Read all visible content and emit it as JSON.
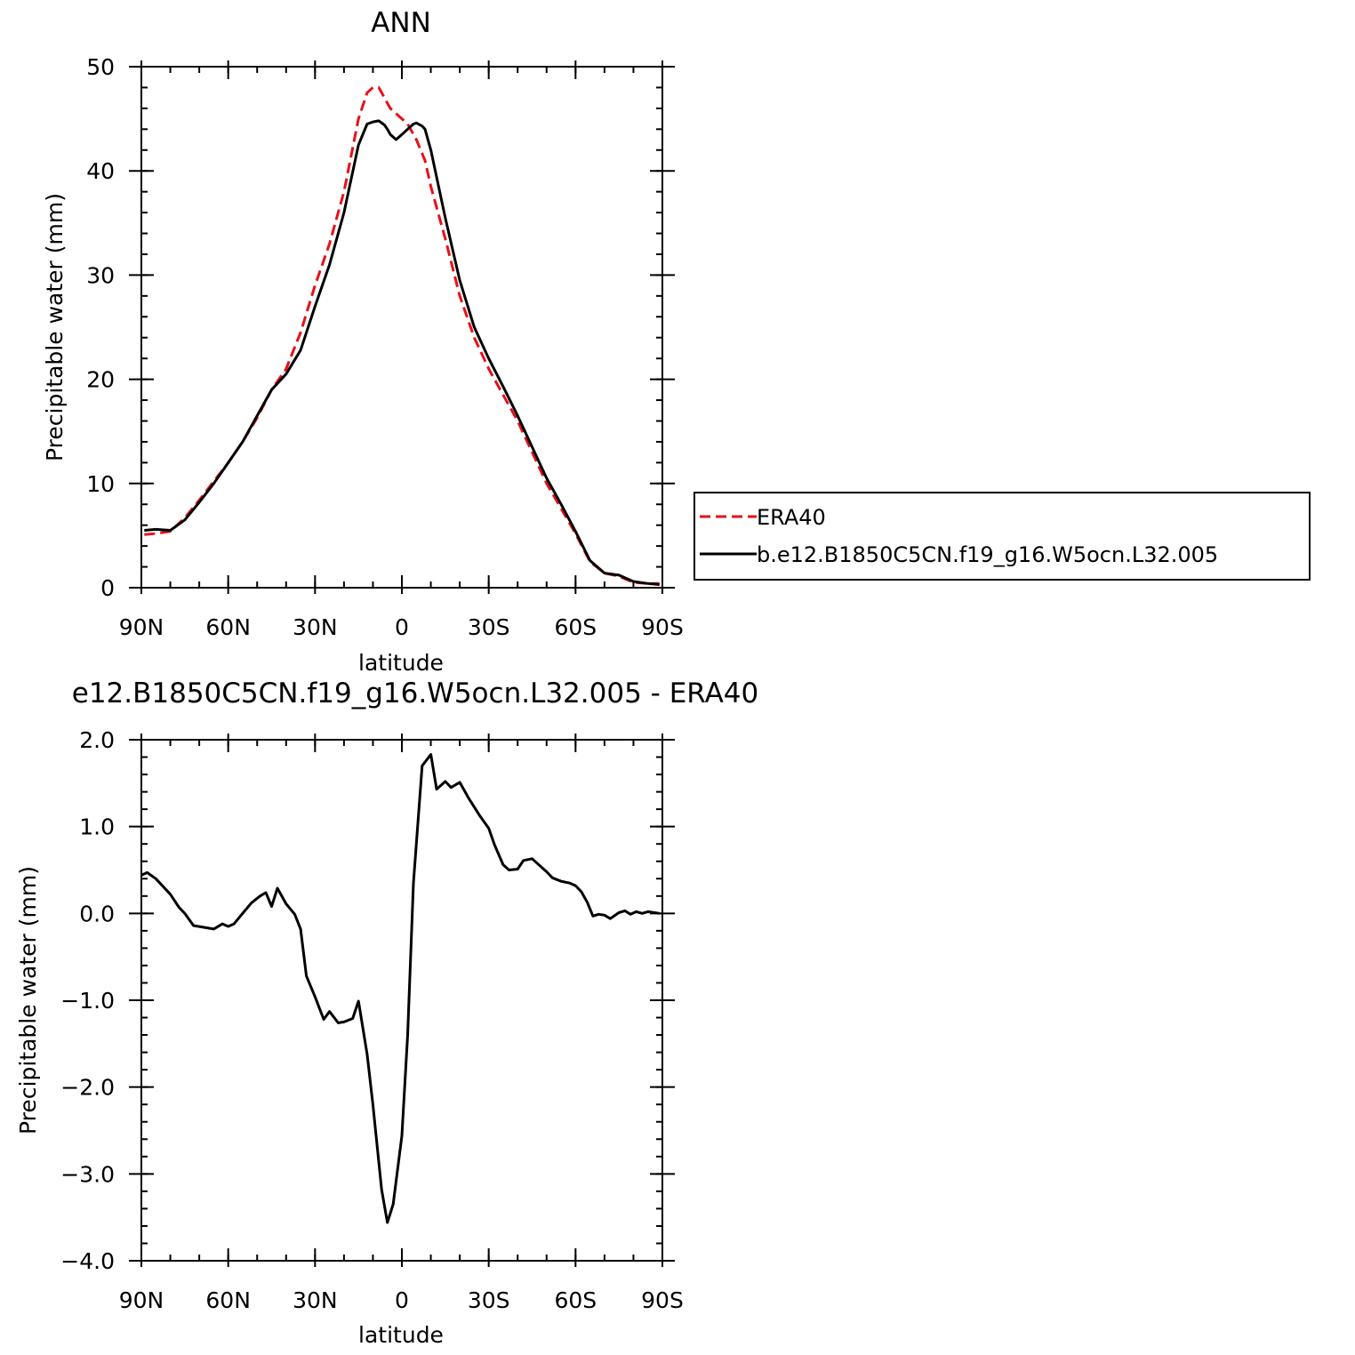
{
  "chart_data": [
    {
      "type": "line",
      "title": "ANN",
      "xlabel": "latitude",
      "ylabel": "Precipitable water (mm)",
      "xlim": [
        90,
        -90
      ],
      "ylim": [
        0,
        50
      ],
      "xticks": [
        90,
        60,
        30,
        0,
        -30,
        -60,
        -90
      ],
      "xtick_labels": [
        "90N",
        "60N",
        "30N",
        "0",
        "30S",
        "60S",
        "90S"
      ],
      "yticks": [
        0,
        10,
        20,
        30,
        40,
        50
      ],
      "ytick_labels": [
        "0",
        "10",
        "20",
        "30",
        "40",
        "50"
      ],
      "legend_position": "right",
      "series": [
        {
          "name": "ERA40",
          "color": "#e8101a",
          "style": "dashed",
          "x": [
            89,
            85,
            80,
            75,
            70,
            65,
            60,
            55,
            50,
            45,
            40,
            35,
            30,
            25,
            20,
            15,
            12,
            10,
            8,
            6,
            5,
            4,
            2,
            0,
            -2,
            -5,
            -8,
            -10,
            -15,
            -20,
            -25,
            -30,
            -35,
            -40,
            -45,
            -50,
            -55,
            -60,
            -65,
            -70,
            -75,
            -80,
            -85,
            -89
          ],
          "y": [
            5.1,
            5.2,
            5.4,
            6.7,
            8.4,
            10.2,
            12.0,
            14.0,
            16.3,
            19.0,
            21.0,
            24.5,
            29.0,
            33.0,
            38.0,
            45.0,
            47.5,
            48.0,
            48.0,
            47.0,
            46.5,
            46.0,
            45.5,
            45.0,
            44.5,
            43.0,
            41.0,
            38.5,
            33.5,
            28.0,
            24.0,
            21.0,
            18.5,
            16.0,
            13.0,
            10.0,
            7.6,
            5.2,
            2.5,
            1.4,
            1.1,
            0.5,
            0.4,
            0.4
          ]
        },
        {
          "name": "b.e12.B1850C5CN.f19_g16.W5ocn.L32.005",
          "color": "#000000",
          "style": "solid",
          "x": [
            89,
            85,
            80,
            75,
            70,
            65,
            60,
            55,
            50,
            45,
            40,
            35,
            30,
            25,
            20,
            15,
            12,
            10,
            8,
            6,
            5,
            4,
            2,
            0,
            -2,
            -4,
            -5,
            -7,
            -8,
            -10,
            -15,
            -20,
            -25,
            -30,
            -35,
            -40,
            -45,
            -50,
            -55,
            -60,
            -65,
            -70,
            -75,
            -80,
            -85,
            -89
          ],
          "y": [
            5.5,
            5.6,
            5.5,
            6.5,
            8.2,
            10.0,
            12.0,
            14.0,
            16.5,
            19.0,
            20.5,
            22.8,
            27.0,
            31.0,
            36.0,
            42.5,
            44.5,
            44.7,
            44.8,
            44.4,
            44.0,
            43.5,
            43.0,
            43.5,
            44.0,
            44.5,
            44.6,
            44.3,
            44.0,
            42.0,
            35.5,
            29.5,
            25.0,
            22.0,
            19.3,
            16.5,
            13.5,
            10.5,
            8.0,
            5.4,
            2.6,
            1.4,
            1.2,
            0.6,
            0.4,
            0.3
          ]
        }
      ]
    },
    {
      "type": "line",
      "title": "e12.B1850C5CN.f19_g16.W5ocn.L32.005 - ERA40",
      "xlabel": "latitude",
      "ylabel": "Precipitable water (mm)",
      "xlim": [
        90,
        -90
      ],
      "ylim": [
        -4.0,
        2.0
      ],
      "xticks": [
        90,
        60,
        30,
        0,
        -30,
        -60,
        -90
      ],
      "xtick_labels": [
        "90N",
        "60N",
        "30N",
        "0",
        "30S",
        "60S",
        "90S"
      ],
      "yticks": [
        -4.0,
        -3.0,
        -2.0,
        -1.0,
        0.0,
        1.0,
        2.0
      ],
      "ytick_labels": [
        "-4.0",
        "-3.0",
        "-2.0",
        "-1.0",
        "0.0",
        "1.0",
        "2.0"
      ],
      "series": [
        {
          "name": "",
          "color": "#000000",
          "style": "solid",
          "x": [
            90,
            88,
            85,
            80,
            77,
            75,
            72,
            65,
            62,
            60,
            58,
            55,
            52,
            49,
            47,
            45,
            43,
            40,
            37,
            35,
            33,
            30,
            27,
            25,
            22,
            20,
            17,
            15,
            12,
            10,
            7,
            5,
            3,
            0,
            -2,
            -4,
            -7,
            -10,
            -12,
            -15,
            -17,
            -20,
            -23,
            -27,
            -30,
            -32,
            -35,
            -37,
            -40,
            -42,
            -45,
            -47,
            -50,
            -52,
            -55,
            -58,
            -60,
            -62,
            -64,
            -66,
            -68,
            -70,
            -72,
            -75,
            -77,
            -79,
            -81,
            -83,
            -85,
            -87,
            -89
          ],
          "y": [
            0.44,
            0.47,
            0.4,
            0.22,
            0.07,
            0.0,
            -0.14,
            -0.18,
            -0.12,
            -0.15,
            -0.12,
            0.0,
            0.12,
            0.2,
            0.24,
            0.08,
            0.29,
            0.11,
            -0.01,
            -0.18,
            -0.72,
            -0.96,
            -1.22,
            -1.13,
            -1.26,
            -1.25,
            -1.21,
            -1.01,
            -1.62,
            -2.2,
            -3.18,
            -3.56,
            -3.35,
            -2.56,
            -1.4,
            0.35,
            1.7,
            1.83,
            1.43,
            1.52,
            1.45,
            1.51,
            1.33,
            1.12,
            0.98,
            0.79,
            0.56,
            0.5,
            0.51,
            0.61,
            0.63,
            0.57,
            0.48,
            0.41,
            0.37,
            0.35,
            0.32,
            0.25,
            0.13,
            -0.03,
            -0.01,
            -0.02,
            -0.06,
            0.01,
            0.03,
            -0.01,
            0.02,
            0.0,
            0.02,
            0.01,
            0.0
          ]
        }
      ]
    }
  ]
}
